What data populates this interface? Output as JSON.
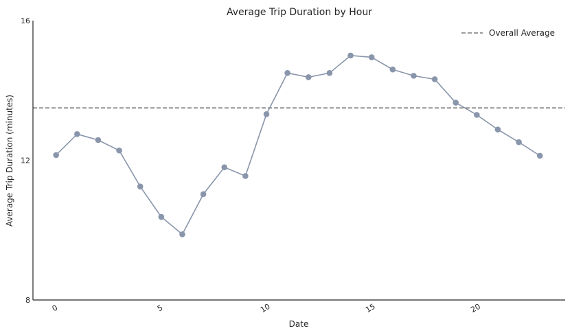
{
  "chart_data": {
    "type": "line",
    "title": "Average Trip Duration by Hour",
    "xlabel": "Date",
    "ylabel": "Average Trip Duration (minutes)",
    "xlim": [
      -1.1,
      24.2
    ],
    "ylim": [
      8,
      16
    ],
    "x_ticks": [
      0,
      5,
      10,
      15,
      20
    ],
    "y_ticks": [
      8,
      12,
      16
    ],
    "grid": false,
    "legend_position": "top-right",
    "series": [
      {
        "x": [
          0,
          1,
          2,
          3,
          4,
          5,
          6,
          7,
          8,
          9,
          10,
          11,
          12,
          13,
          14,
          15,
          16,
          17,
          18,
          19,
          20,
          21,
          22,
          23
        ],
        "values": [
          12.15,
          12.75,
          12.58,
          12.28,
          11.25,
          10.38,
          9.88,
          11.03,
          11.8,
          11.55,
          13.32,
          14.5,
          14.38,
          14.5,
          15.0,
          14.95,
          14.6,
          14.42,
          14.32,
          13.65,
          13.3,
          12.88,
          12.52,
          12.13
        ],
        "color": "#8995ab"
      }
    ],
    "reference_lines": [
      {
        "name": "Overall Average",
        "y": 13.5,
        "color": "#7a7a7a",
        "style": "dashed"
      }
    ]
  }
}
